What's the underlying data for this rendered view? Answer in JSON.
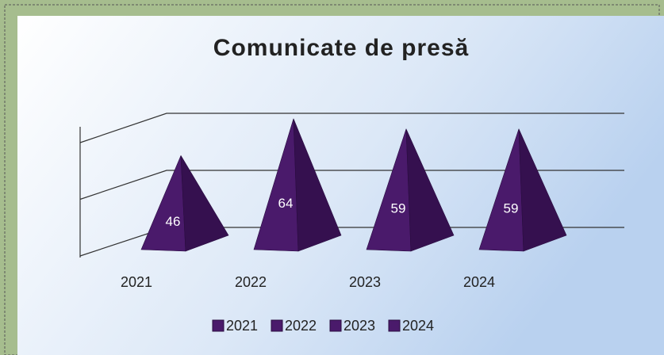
{
  "chart_data": {
    "type": "pyramid",
    "title": "Comunicate de presă",
    "categories": [
      "2021",
      "2022",
      "2023",
      "2024"
    ],
    "values": [
      46,
      64,
      59,
      59
    ],
    "color": "#4a1a6b",
    "legend": [
      "2021",
      "2022",
      "2023",
      "2024"
    ],
    "ylim": [
      0,
      80
    ],
    "yticks": [
      0,
      40,
      80
    ],
    "grid": true
  }
}
